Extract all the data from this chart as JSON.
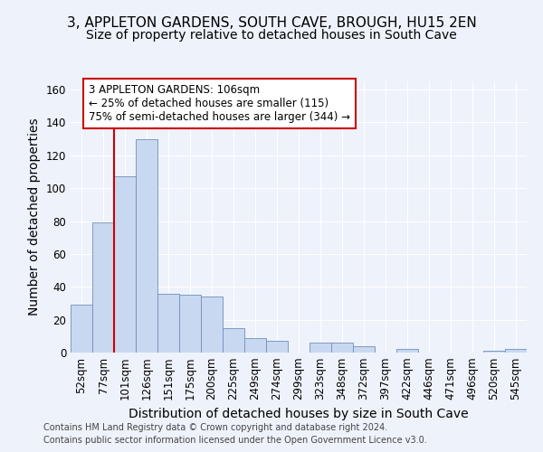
{
  "title1": "3, APPLETON GARDENS, SOUTH CAVE, BROUGH, HU15 2EN",
  "title2": "Size of property relative to detached houses in South Cave",
  "xlabel": "Distribution of detached houses by size in South Cave",
  "ylabel": "Number of detached properties",
  "bar_color": "#c8d8f0",
  "bar_edge_color": "#7aа0cc",
  "bins": [
    "52sqm",
    "77sqm",
    "101sqm",
    "126sqm",
    "151sqm",
    "175sqm",
    "200sqm",
    "225sqm",
    "249sqm",
    "274sqm",
    "299sqm",
    "323sqm",
    "348sqm",
    "372sqm",
    "397sqm",
    "422sqm",
    "446sqm",
    "471sqm",
    "496sqm",
    "520sqm",
    "545sqm"
  ],
  "values": [
    29,
    79,
    107,
    130,
    36,
    35,
    34,
    15,
    9,
    7,
    0,
    6,
    6,
    4,
    0,
    2,
    0,
    0,
    0,
    1,
    2
  ],
  "ylim": [
    0,
    165
  ],
  "yticks": [
    0,
    20,
    40,
    60,
    80,
    100,
    120,
    140,
    160
  ],
  "red_line_x": 2.0,
  "red_line_color": "#cc0000",
  "annotation_text": "3 APPLETON GARDENS: 106sqm\n← 25% of detached houses are smaller (115)\n75% of semi-detached houses are larger (344) →",
  "annotation_box_color": "#ffffff",
  "annotation_border_color": "#cc0000",
  "footer1": "Contains HM Land Registry data © Crown copyright and database right 2024.",
  "footer2": "Contains public sector information licensed under the Open Government Licence v3.0.",
  "background_color": "#eef2fb",
  "grid_color": "#ffffff",
  "title_fontsize": 11,
  "subtitle_fontsize": 10,
  "axis_label_fontsize": 10,
  "tick_fontsize": 8.5,
  "annotation_fontsize": 8.5,
  "footer_fontsize": 7
}
